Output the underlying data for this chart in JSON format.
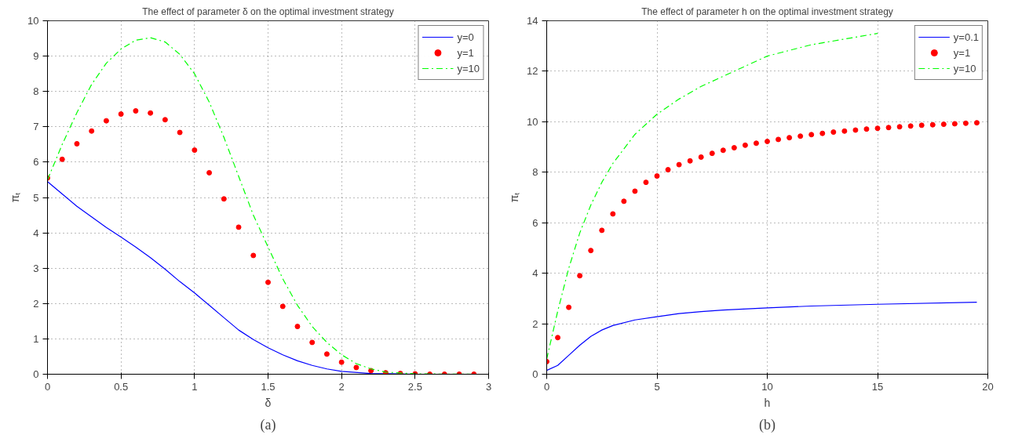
{
  "chart_data": [
    {
      "type": "line",
      "title": "The effect of parameter δ on the optimal investment strategy",
      "xlabel": "δ",
      "ylabel": "πₜ",
      "annotations": [
        "(a)"
      ],
      "xlim": [
        0,
        3
      ],
      "ylim": [
        0,
        10
      ],
      "xticks": [
        0,
        0.5,
        1,
        1.5,
        2,
        2.5,
        3
      ],
      "yticks": [
        0,
        1,
        2,
        3,
        4,
        5,
        6,
        7,
        8,
        9,
        10
      ],
      "grid": true,
      "legend": "top right",
      "series": [
        {
          "name": "y=0",
          "type": "line",
          "line_style": "solid",
          "color": "#0000ff",
          "x": [
            0,
            0.1,
            0.2,
            0.3,
            0.4,
            0.5,
            0.6,
            0.7,
            0.8,
            0.9,
            1.0,
            1.1,
            1.2,
            1.3,
            1.4,
            1.5,
            1.6,
            1.7,
            1.8,
            1.9,
            2.0,
            2.2,
            2.5,
            2.9
          ],
          "values": [
            5.45,
            5.1,
            4.75,
            4.45,
            4.15,
            3.88,
            3.6,
            3.3,
            2.97,
            2.62,
            2.3,
            1.95,
            1.6,
            1.25,
            0.98,
            0.75,
            0.55,
            0.38,
            0.25,
            0.15,
            0.08,
            0.02,
            0,
            0
          ]
        },
        {
          "name": "y=1",
          "type": "scatter",
          "marker": "circle",
          "color": "#ff0000",
          "x": [
            0,
            0.1,
            0.2,
            0.3,
            0.4,
            0.5,
            0.6,
            0.7,
            0.8,
            0.9,
            1.0,
            1.1,
            1.2,
            1.3,
            1.4,
            1.5,
            1.6,
            1.7,
            1.8,
            1.9,
            2.0,
            2.1,
            2.2,
            2.3,
            2.4,
            2.5,
            2.6,
            2.7,
            2.8,
            2.9
          ],
          "values": [
            5.55,
            6.08,
            6.52,
            6.88,
            7.17,
            7.36,
            7.45,
            7.39,
            7.2,
            6.84,
            6.34,
            5.7,
            4.96,
            4.16,
            3.36,
            2.6,
            1.92,
            1.35,
            0.9,
            0.57,
            0.34,
            0.19,
            0.1,
            0.04,
            0.02,
            0.01,
            0,
            0,
            0,
            0
          ]
        },
        {
          "name": "y=10",
          "type": "line",
          "line_style": "dashed",
          "color": "#00ff00",
          "x": [
            0,
            0.1,
            0.2,
            0.3,
            0.4,
            0.5,
            0.6,
            0.7,
            0.8,
            0.9,
            1.0,
            1.1,
            1.2,
            1.3,
            1.4,
            1.5,
            1.6,
            1.7,
            1.8,
            1.9,
            2.0,
            2.1,
            2.2,
            2.3,
            2.5,
            2.9
          ],
          "values": [
            5.5,
            6.5,
            7.4,
            8.2,
            8.8,
            9.2,
            9.45,
            9.52,
            9.4,
            9.05,
            8.5,
            7.7,
            6.7,
            5.6,
            4.5,
            3.6,
            2.7,
            1.95,
            1.35,
            0.9,
            0.55,
            0.3,
            0.15,
            0.06,
            0.01,
            0
          ]
        }
      ]
    },
    {
      "type": "line",
      "title": "The effect of parameter h on the optimal investment strategy",
      "xlabel": "h",
      "ylabel": "πₜ",
      "annotations": [
        "(b)"
      ],
      "xlim": [
        0,
        20
      ],
      "ylim": [
        0,
        14
      ],
      "xticks": [
        0,
        5,
        10,
        15,
        20
      ],
      "yticks": [
        0,
        2,
        4,
        6,
        8,
        10,
        12,
        14
      ],
      "grid": true,
      "legend": "top right",
      "series": [
        {
          "name": "y=0.1",
          "type": "line",
          "line_style": "solid",
          "color": "#0000ff",
          "x": [
            0,
            0.5,
            1,
            1.5,
            2,
            2.5,
            3,
            4,
            5,
            6,
            7,
            8,
            10,
            12,
            15,
            19.5
          ],
          "values": [
            0.15,
            0.35,
            0.75,
            1.15,
            1.5,
            1.75,
            1.93,
            2.15,
            2.28,
            2.4,
            2.48,
            2.54,
            2.63,
            2.7,
            2.77,
            2.85
          ]
        },
        {
          "name": "y=1",
          "type": "scatter",
          "marker": "circle",
          "color": "#ff0000",
          "x": [
            0,
            0.5,
            1,
            1.5,
            2,
            2.5,
            3,
            3.5,
            4,
            4.5,
            5,
            5.5,
            6,
            6.5,
            7,
            7.5,
            8,
            8.5,
            9,
            9.5,
            10,
            10.5,
            11,
            11.5,
            12,
            12.5,
            13,
            13.5,
            14,
            14.5,
            15,
            15.5,
            16,
            16.5,
            17,
            17.5,
            18,
            18.5,
            19,
            19.5
          ],
          "values": [
            0.5,
            1.45,
            2.65,
            3.9,
            4.9,
            5.7,
            6.35,
            6.85,
            7.25,
            7.6,
            7.85,
            8.1,
            8.3,
            8.45,
            8.6,
            8.75,
            8.87,
            8.97,
            9.07,
            9.15,
            9.22,
            9.3,
            9.37,
            9.43,
            9.49,
            9.54,
            9.59,
            9.63,
            9.67,
            9.71,
            9.74,
            9.77,
            9.8,
            9.83,
            9.86,
            9.88,
            9.9,
            9.92,
            9.94,
            9.96
          ]
        },
        {
          "name": "y=10",
          "type": "line",
          "line_style": "dashed",
          "color": "#00ff00",
          "x": [
            0,
            0.5,
            1,
            1.5,
            2,
            2.5,
            3,
            4,
            5,
            6,
            7,
            8,
            10,
            12,
            14,
            15
          ],
          "values": [
            0.6,
            2.5,
            4.2,
            5.6,
            6.7,
            7.6,
            8.35,
            9.5,
            10.3,
            10.9,
            11.4,
            11.8,
            12.6,
            13.05,
            13.35,
            13.5
          ]
        }
      ]
    }
  ]
}
